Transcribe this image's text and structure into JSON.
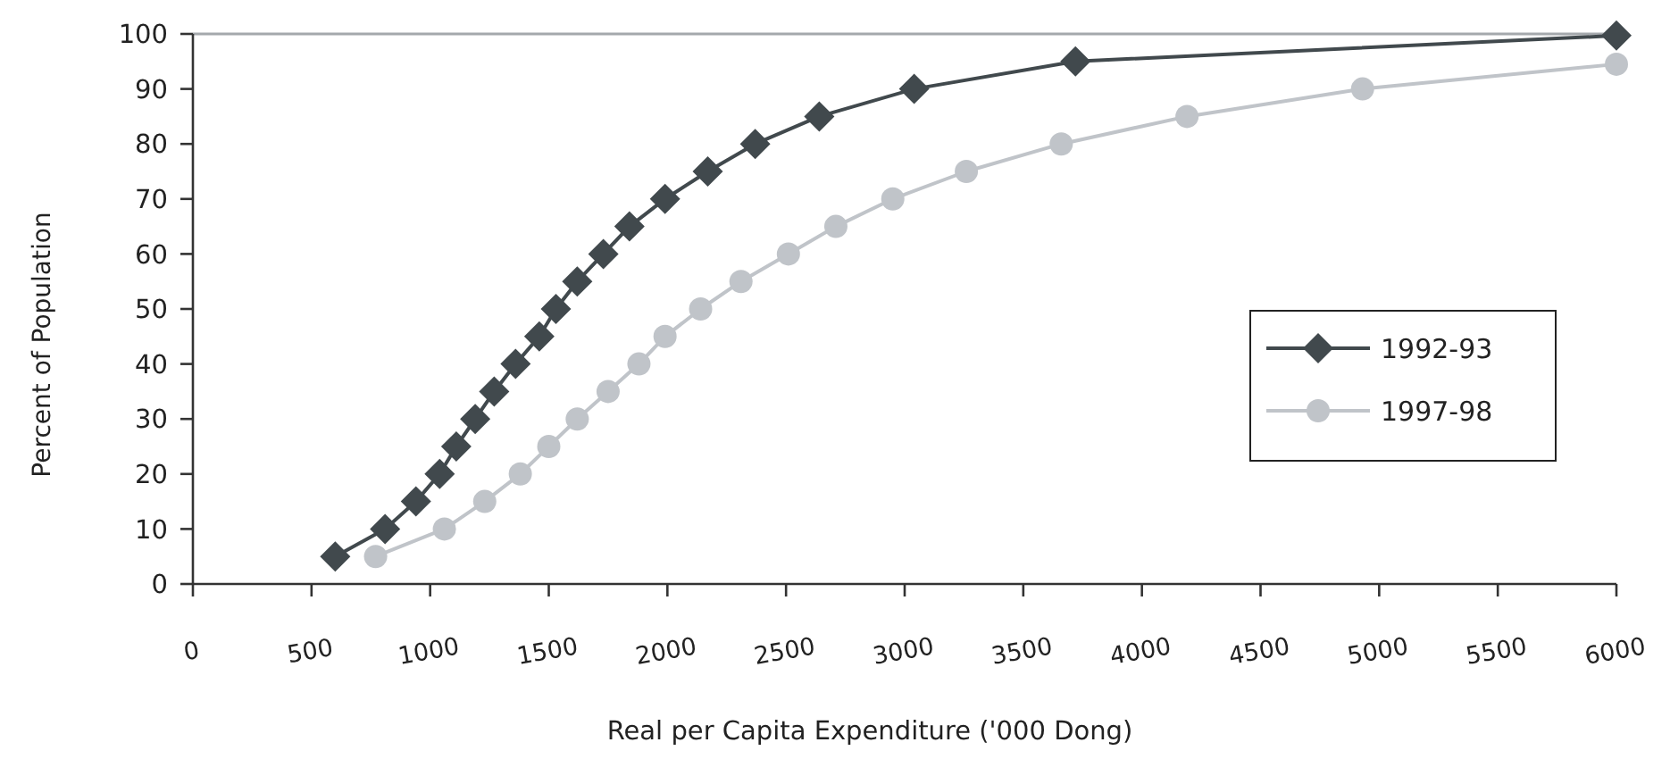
{
  "chart_data": {
    "type": "line",
    "xlabel": "Real per Capita Expenditure ('000 Dong)",
    "ylabel": "Percent of Population",
    "xlim": [
      0,
      6000
    ],
    "xticks": [
      0,
      500,
      1000,
      1500,
      2000,
      2500,
      3000,
      3500,
      4000,
      4500,
      5000,
      5500,
      6000
    ],
    "ylim": [
      0,
      100
    ],
    "yticks": [
      0,
      10,
      20,
      30,
      40,
      50,
      60,
      70,
      80,
      90,
      100
    ],
    "legend": "right",
    "series": [
      {
        "name": "1992-93",
        "color": "#41494d",
        "marker": "diamond",
        "x": [
          600,
          810,
          940,
          1040,
          1110,
          1190,
          1270,
          1360,
          1460,
          1530,
          1620,
          1730,
          1840,
          1990,
          2170,
          2370,
          2640,
          3040,
          3720,
          6000
        ],
        "values": [
          5,
          10,
          15,
          20,
          25,
          30,
          35,
          40,
          45,
          50,
          55,
          60,
          65,
          70,
          75,
          80,
          85,
          90,
          95,
          99.7
        ]
      },
      {
        "name": "1997-98",
        "color": "#c0c4c9",
        "marker": "circle",
        "x": [
          770,
          1060,
          1230,
          1380,
          1500,
          1620,
          1750,
          1880,
          1990,
          2140,
          2310,
          2510,
          2710,
          2950,
          3260,
          3660,
          4190,
          4930,
          6000
        ],
        "values": [
          5,
          10,
          15,
          20,
          25,
          30,
          35,
          40,
          45,
          50,
          55,
          60,
          65,
          70,
          75,
          80,
          85,
          90,
          94.5
        ]
      }
    ]
  }
}
